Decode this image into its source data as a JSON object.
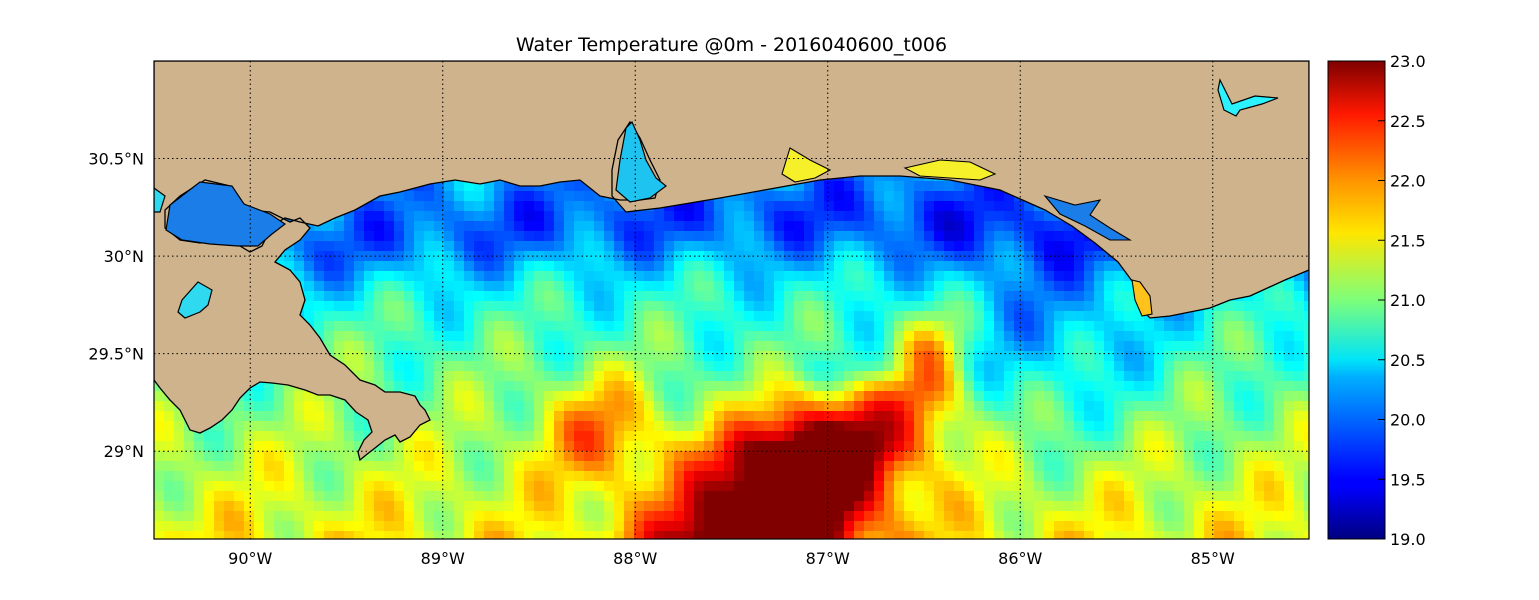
{
  "title": "Water Temperature @0m - 2016040600_t006",
  "map": {
    "lon_range": [
      -90.5,
      -84.5
    ],
    "lat_range": [
      28.55,
      31.0
    ],
    "land_color": "#cfb38c",
    "coastline_color": "#000000",
    "gridlines": "dotted",
    "x_ticks": [
      {
        "value": -90,
        "label": "90°W"
      },
      {
        "value": -89,
        "label": "89°W"
      },
      {
        "value": -88,
        "label": "88°W"
      },
      {
        "value": -87,
        "label": "87°W"
      },
      {
        "value": -86,
        "label": "86°W"
      },
      {
        "value": -85,
        "label": "85°W"
      }
    ],
    "y_ticks": [
      {
        "value": 30.5,
        "label": "30.5°N"
      },
      {
        "value": 30.0,
        "label": "30°N"
      },
      {
        "value": 29.5,
        "label": "29.5°N"
      },
      {
        "value": 29.0,
        "label": "29°N"
      }
    ]
  },
  "colorbar": {
    "min": 19.0,
    "max": 23.0,
    "colormap": "jet",
    "ticks": [
      "19.0",
      "19.5",
      "20.0",
      "20.5",
      "21.0",
      "21.5",
      "22.0",
      "22.5",
      "23.0"
    ],
    "tick_values": [
      19.0,
      19.5,
      20.0,
      20.5,
      21.0,
      21.5,
      22.0,
      22.5,
      23.0
    ]
  }
}
